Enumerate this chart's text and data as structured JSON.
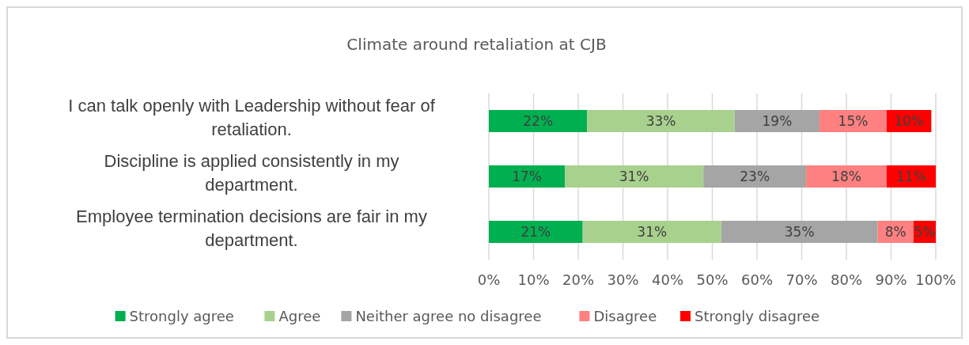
{
  "chart_data": {
    "type": "bar",
    "title": "Climate around retaliation at CJB",
    "orientation": "horizontal",
    "stacked": true,
    "categories": [
      "I can talk openly with Leadership without fear of retaliation.",
      "Discipline is applied consistently in my department.",
      "Employee termination decisions are fair in my department."
    ],
    "series": [
      {
        "name": "Strongly agree",
        "color": "#00b050",
        "values": [
          22,
          17,
          21
        ]
      },
      {
        "name": "Agree",
        "color": "#a9d18e",
        "values": [
          33,
          31,
          31
        ]
      },
      {
        "name": "Neither agree no disagree",
        "color": "#a5a5a5",
        "values": [
          19,
          23,
          35
        ]
      },
      {
        "name": "Disagree",
        "color": "#ff8080",
        "values": [
          15,
          18,
          8
        ]
      },
      {
        "name": "Strongly disagree",
        "color": "#ff0000",
        "values": [
          10,
          11,
          5
        ]
      }
    ],
    "xlim": [
      0,
      100
    ],
    "xticks": [
      {
        "value": 0,
        "label": "0%"
      },
      {
        "value": 10,
        "label": "10%"
      },
      {
        "value": 20,
        "label": "20%"
      },
      {
        "value": 30,
        "label": "30%"
      },
      {
        "value": 40,
        "label": "40%"
      },
      {
        "value": 50,
        "label": "50%"
      },
      {
        "value": 60,
        "label": "60%"
      },
      {
        "value": 70,
        "label": "70%"
      },
      {
        "value": 80,
        "label": "80%"
      },
      {
        "value": 90,
        "label": "90%"
      },
      {
        "value": 100,
        "label": "100%"
      }
    ],
    "value_labels": [
      [
        "22%",
        "17%",
        "21%"
      ],
      [
        "33%",
        "31%",
        "31%"
      ],
      [
        "19%",
        "23%",
        "35%"
      ],
      [
        "15%",
        "18%",
        "8%"
      ],
      [
        "10%",
        "11%",
        "5%"
      ]
    ],
    "grid": "x",
    "legend": "bottom"
  }
}
